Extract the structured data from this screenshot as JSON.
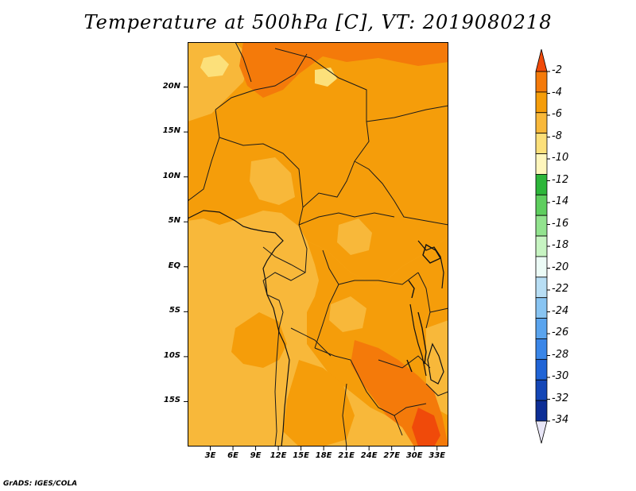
{
  "title": "Temperature at 500hPa [C], VT: 2019080218",
  "credit": "GrADS: IGES/COLA",
  "map": {
    "lon_range": [
      0,
      34.5
    ],
    "lat_range": [
      -20,
      25
    ],
    "y_ticks": [
      {
        "value": 20,
        "label": "20N"
      },
      {
        "value": 15,
        "label": "15N"
      },
      {
        "value": 10,
        "label": "10N"
      },
      {
        "value": 5,
        "label": "5N"
      },
      {
        "value": 0,
        "label": "EQ"
      },
      {
        "value": -5,
        "label": "5S"
      },
      {
        "value": -10,
        "label": "10S"
      },
      {
        "value": -15,
        "label": "15S"
      }
    ],
    "x_ticks": [
      {
        "value": 3,
        "label": "3E"
      },
      {
        "value": 6,
        "label": "6E"
      },
      {
        "value": 9,
        "label": "9E"
      },
      {
        "value": 12,
        "label": "12E"
      },
      {
        "value": 15,
        "label": "15E"
      },
      {
        "value": 18,
        "label": "18E"
      },
      {
        "value": 21,
        "label": "21E"
      },
      {
        "value": 24,
        "label": "24E"
      },
      {
        "value": 27,
        "label": "27E"
      },
      {
        "value": 30,
        "label": "30E"
      },
      {
        "value": 33,
        "label": "33E"
      }
    ]
  },
  "colorbar": {
    "labels": [
      "-2",
      "-4",
      "-6",
      "-8",
      "-10",
      "-12",
      "-14",
      "-16",
      "-18",
      "-20",
      "-22",
      "-24",
      "-26",
      "-28",
      "-30",
      "-32",
      "-34"
    ],
    "colors": [
      "#f04a0a",
      "#f47a0a",
      "#f59d0a",
      "#f8b83a",
      "#fce07a",
      "#fff6bc",
      "#2db63a",
      "#5ece5e",
      "#92e38e",
      "#c7f4c2",
      "#ecfbf6",
      "#b8def4",
      "#88c4f2",
      "#5aa4ee",
      "#3a86e8",
      "#2064d6",
      "#1446b6",
      "#0d2e96",
      "#081b6c"
    ],
    "top_arrow_color": "#f04a0a",
    "bottom_arrow_color": "#e8e6f7"
  }
}
